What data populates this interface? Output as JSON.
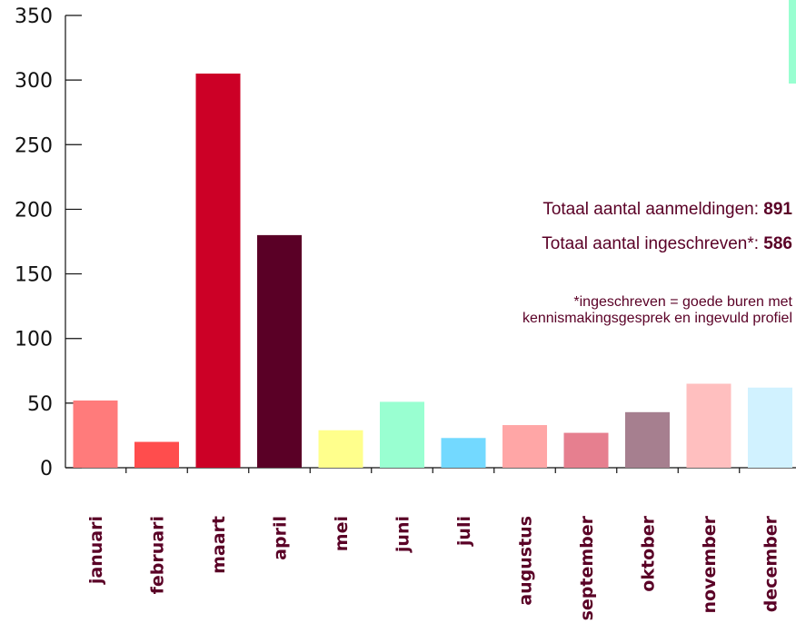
{
  "colors": {
    "text": "#5a0026",
    "axis": "#111111",
    "accent_strip": "#99ffd1"
  },
  "stats": {
    "registrations_label": "Totaal aantal aanmeldingen: ",
    "registrations_value": "891",
    "enrolled_label": "Totaal aantal ingeschreven*: ",
    "enrolled_value": "586",
    "footnote_line1": "*ingeschreven = goede buren met",
    "footnote_line2": "kennismakingsgesprek en ingevuld profiel"
  },
  "chart_data": {
    "type": "bar",
    "categories": [
      "januari",
      "februari",
      "maart",
      "april",
      "mei",
      "juni",
      "juli",
      "augustus",
      "september",
      "oktober",
      "november",
      "december"
    ],
    "values": [
      52,
      20,
      305,
      180,
      29,
      51,
      23,
      33,
      27,
      43,
      65,
      62
    ],
    "bar_colors": [
      "#ff7b7b",
      "#ff4d4d",
      "#cc0026",
      "#5a0026",
      "#ffff8c",
      "#99ffd1",
      "#73d9ff",
      "#ffa6a6",
      "#e67f8f",
      "#a67f8f",
      "#ffbfbf",
      "#d1f2ff"
    ],
    "ylim": [
      0,
      350
    ],
    "yticks": [
      0,
      50,
      100,
      150,
      200,
      250,
      300,
      350
    ],
    "title": "",
    "xlabel": "",
    "ylabel": ""
  }
}
